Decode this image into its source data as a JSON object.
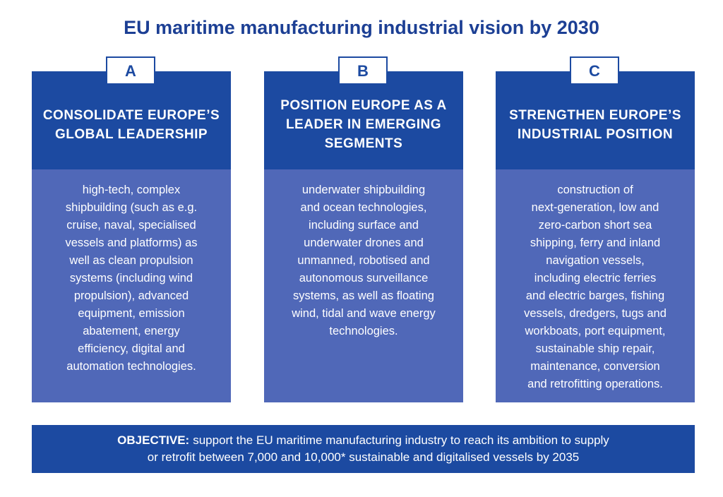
{
  "title": "EU maritime manufacturing industrial vision by 2030",
  "columns": [
    {
      "letter": "A",
      "heading": [
        "CONSOLIDATE EUROPE’S",
        "GLOBAL LEADERSHIP"
      ],
      "body": [
        "high-tech, complex",
        "shipbuilding (such as e.g.",
        "cruise, naval, specialised",
        "vessels and platforms) as",
        "well as clean propulsion",
        "systems (including wind",
        "propulsion), advanced",
        "equipment, emission",
        "abatement, energy",
        "efficiency, digital and",
        "automation technologies."
      ]
    },
    {
      "letter": "B",
      "heading": [
        "POSITION EUROPE AS A",
        "LEADER IN EMERGING",
        "SEGMENTS"
      ],
      "body": [
        "underwater shipbuilding",
        "and ocean technologies,",
        "including surface and",
        "underwater drones and",
        "unmanned, robotised and",
        "autonomous surveillance",
        "systems, as well as floating",
        "wind, tidal and wave energy",
        "technologies."
      ]
    },
    {
      "letter": "C",
      "heading": [
        "STRENGTHEN EUROPE’S",
        "INDUSTRIAL POSITION"
      ],
      "body": [
        "construction of",
        "next-generation, low and",
        "zero-carbon short sea",
        "shipping, ferry and inland",
        "navigation vessels,",
        "including electric ferries",
        "and electric barges, fishing",
        "vessels, dredgers, tugs and",
        "workboats, port equipment,",
        "sustainable ship repair,",
        "maintenance, conversion",
        "and retrofitting operations."
      ]
    }
  ],
  "objective": {
    "label": "OBJECTIVE:",
    "lines": [
      "support the EU maritime manufacturing industry to reach its ambition to supply",
      "or retrofit between 7,000 and 10,000* sustainable and digitalised vessels by 2035"
    ]
  }
}
